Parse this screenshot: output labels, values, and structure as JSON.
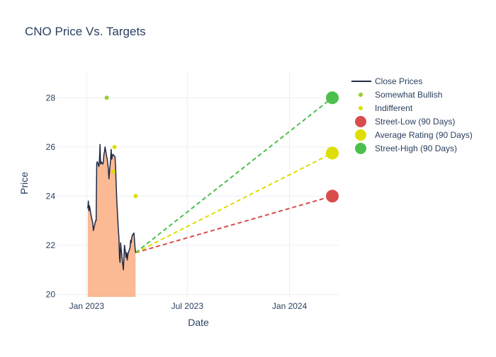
{
  "chart_data": {
    "type": "line",
    "title": "CNO Price Vs. Targets",
    "xlabel": "Date",
    "ylabel": "Price",
    "xlim": [
      "2022-11-08",
      "2024-04-01"
    ],
    "ylim": [
      19.9,
      29.1
    ],
    "grid": true,
    "legend_position": "top-right",
    "x_ticks": [
      {
        "date": "2023-01-01",
        "label": "Jan 2023"
      },
      {
        "date": "2023-07-01",
        "label": "Jul 2023"
      },
      {
        "date": "2024-01-01",
        "label": "Jan 2024"
      }
    ],
    "y_ticks": [
      20,
      22,
      24,
      26,
      28
    ],
    "series": [
      {
        "name": "Close Prices",
        "type": "line-with-area",
        "color": "#1f2a44",
        "fill_color": "#f9a36f",
        "x": [
          "2023-01-03",
          "2023-01-04",
          "2023-01-05",
          "2023-01-06",
          "2023-01-09",
          "2023-01-10",
          "2023-01-11",
          "2023-01-12",
          "2023-01-13",
          "2023-01-17",
          "2023-01-18",
          "2023-01-19",
          "2023-01-20",
          "2023-01-23",
          "2023-01-24",
          "2023-01-25",
          "2023-01-26",
          "2023-01-27",
          "2023-01-30",
          "2023-01-31",
          "2023-02-01",
          "2023-02-02",
          "2023-02-03",
          "2023-02-06",
          "2023-02-07",
          "2023-02-08",
          "2023-02-09",
          "2023-02-10",
          "2023-02-13",
          "2023-02-14",
          "2023-02-15",
          "2023-02-16",
          "2023-02-17",
          "2023-02-21",
          "2023-02-22",
          "2023-02-23",
          "2023-02-24",
          "2023-02-27",
          "2023-02-28",
          "2023-03-01",
          "2023-03-02",
          "2023-03-03",
          "2023-03-06",
          "2023-03-07",
          "2023-03-08",
          "2023-03-09",
          "2023-03-10",
          "2023-03-13",
          "2023-03-14",
          "2023-03-15",
          "2023-03-16",
          "2023-03-17",
          "2023-03-20",
          "2023-03-21",
          "2023-03-22",
          "2023-03-23",
          "2023-03-24",
          "2023-03-27",
          "2023-03-28",
          "2023-03-29",
          "2023-03-30"
        ],
        "values": [
          23.5,
          23.8,
          23.4,
          23.6,
          23.2,
          23.1,
          23.0,
          22.9,
          22.6,
          23.0,
          23.0,
          25.3,
          25.4,
          25.2,
          25.5,
          26.1,
          25.3,
          25.4,
          25.3,
          25.4,
          25.7,
          25.8,
          26.0,
          25.6,
          25.5,
          25.3,
          25.1,
          24.7,
          25.5,
          25.9,
          25.5,
          25.6,
          25.7,
          25.6,
          25.2,
          24.5,
          23.9,
          22.6,
          22.3,
          21.5,
          21.3,
          22.1,
          21.4,
          21.2,
          21.0,
          21.5,
          22.0,
          21.5,
          21.7,
          21.4,
          21.6,
          21.7,
          21.9,
          22.2,
          22.1,
          22.3,
          22.4,
          22.5,
          22.2,
          21.9,
          21.7
        ]
      },
      {
        "name": "Somewhat Bullish",
        "type": "markers",
        "color": "#9acd32",
        "x": [
          "2023-02-06"
        ],
        "values": [
          28
        ]
      },
      {
        "name": "Indifferent",
        "type": "markers",
        "color": "#dede00",
        "x": [
          "2023-02-20",
          "2023-02-18",
          "2023-03-30"
        ],
        "values": [
          26,
          25,
          24
        ]
      },
      {
        "name": "Street-Low (90 Days)",
        "type": "target",
        "color": "#d94c4c",
        "x": [
          "2023-03-30",
          "2024-03-18"
        ],
        "values": [
          21.7,
          24
        ]
      },
      {
        "name": "Average Rating (90 Days)",
        "type": "target",
        "color": "#dede00",
        "x": [
          "2023-03-30",
          "2024-03-18"
        ],
        "values": [
          21.7,
          25.75
        ]
      },
      {
        "name": "Street-High (90 Days)",
        "type": "target",
        "color": "#4cc04c",
        "x": [
          "2023-03-30",
          "2024-03-18"
        ],
        "values": [
          21.7,
          28
        ]
      }
    ]
  }
}
